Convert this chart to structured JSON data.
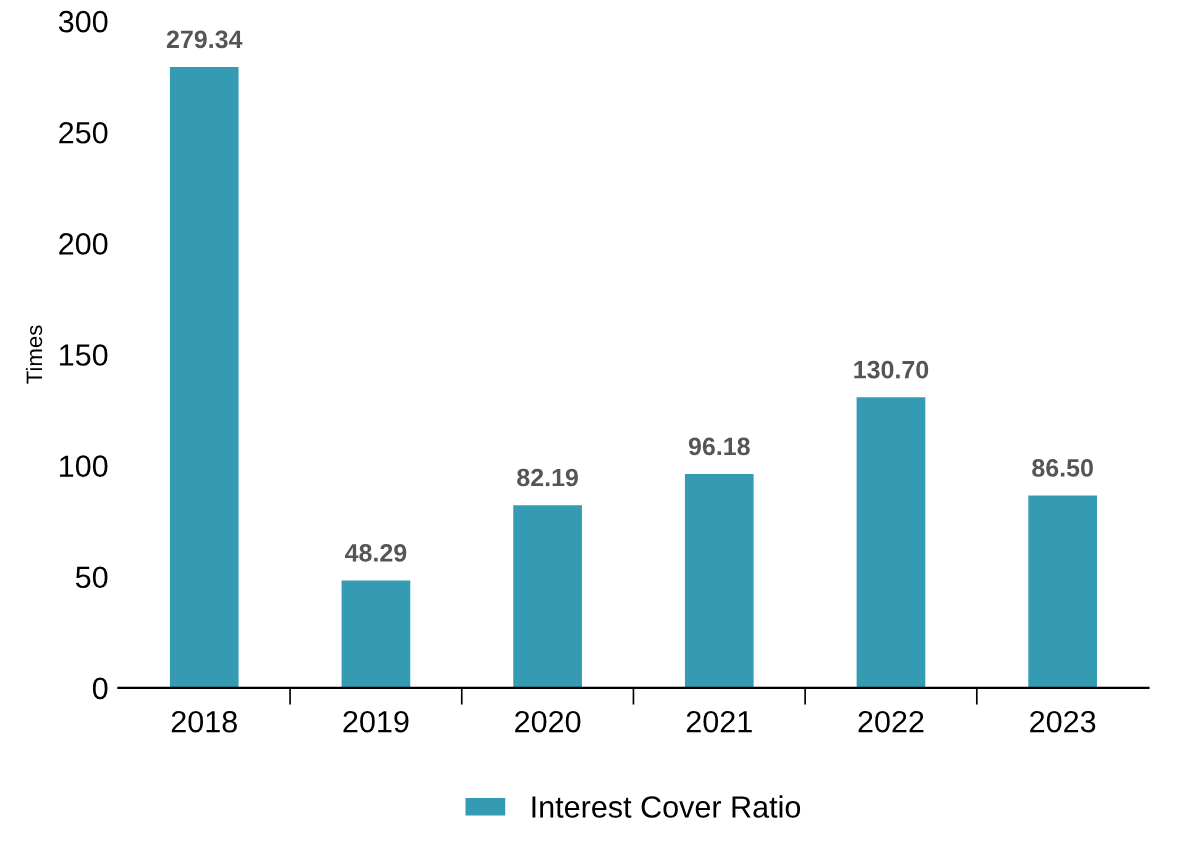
{
  "chart_data": {
    "type": "bar",
    "ylabel": "Times",
    "categories": [
      "2018",
      "2019",
      "2020",
      "2021",
      "2022",
      "2023"
    ],
    "series": [
      {
        "name": "Interest Cover Ratio",
        "color": "#359bb2",
        "values": [
          279.34,
          48.29,
          82.19,
          96.18,
          130.7,
          86.5
        ],
        "value_labels": [
          "279.34",
          "48.29",
          "82.19",
          "96.18",
          "130.70",
          "86.50"
        ]
      }
    ],
    "ylim": [
      0,
      300
    ],
    "yticks": [
      0,
      50,
      100,
      150,
      200,
      250,
      300
    ],
    "grid": false,
    "legend": "bottom"
  }
}
